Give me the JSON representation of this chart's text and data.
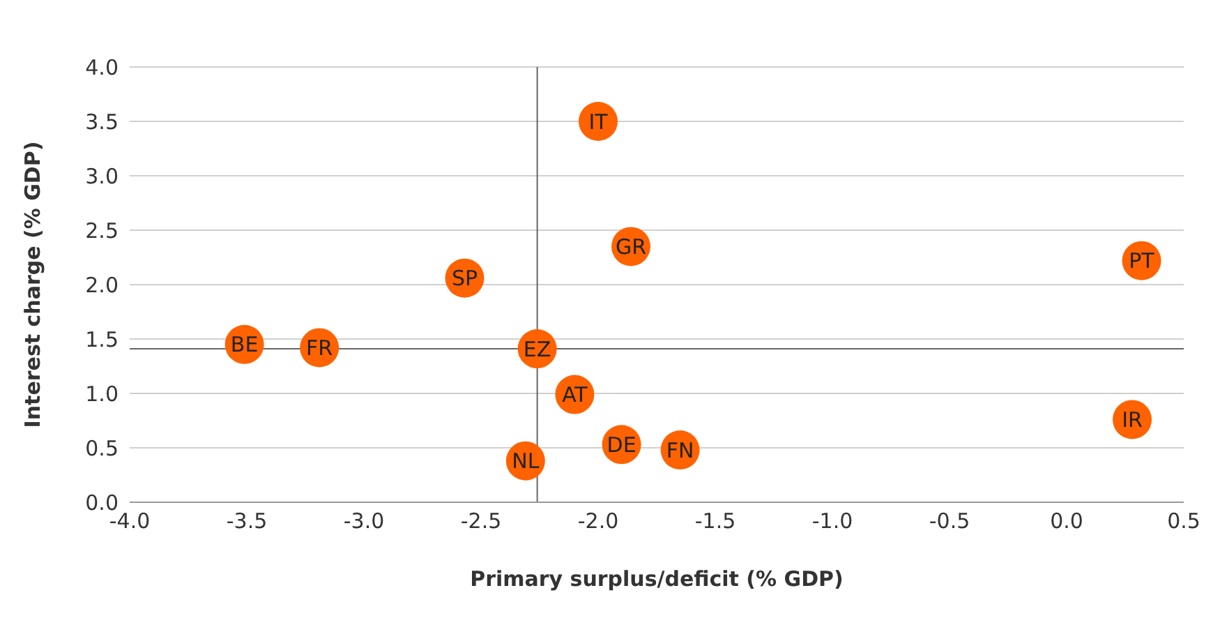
{
  "chart_data": {
    "type": "scatter",
    "xlabel": "Primary surplus/deficit (% GDP)",
    "ylabel": "Interest charge (% GDP)",
    "x": [
      -2.0,
      -1.86,
      0.32,
      -2.57,
      -3.51,
      -3.19,
      -2.26,
      -2.1,
      0.28,
      -1.9,
      -1.65,
      -2.31
    ],
    "series": [
      {
        "color": "#ff6200",
        "values": [
          3.5,
          2.35,
          2.22,
          2.06,
          1.45,
          1.42,
          1.41,
          0.99,
          0.76,
          0.53,
          0.48,
          0.38
        ]
      }
    ],
    "annotations": [
      {
        "text": "IT",
        "x": -2.0,
        "y": 3.5
      },
      {
        "text": "GR",
        "x": -1.86,
        "y": 2.35
      },
      {
        "text": "PT",
        "x": 0.32,
        "y": 2.22
      },
      {
        "text": "SP",
        "x": -2.57,
        "y": 2.06
      },
      {
        "text": "BE",
        "x": -3.51,
        "y": 1.45
      },
      {
        "text": "FR",
        "x": -3.19,
        "y": 1.42
      },
      {
        "text": "EZ",
        "x": -2.26,
        "y": 1.41
      },
      {
        "text": "AT",
        "x": -2.1,
        "y": 0.99
      },
      {
        "text": "IR",
        "x": 0.28,
        "y": 0.76
      },
      {
        "text": "DE",
        "x": -1.9,
        "y": 0.53
      },
      {
        "text": "FN",
        "x": -1.65,
        "y": 0.48
      },
      {
        "text": "NL",
        "x": -2.31,
        "y": 0.38
      }
    ],
    "ref_lines": [
      {
        "axis": "x",
        "value": -2.26,
        "color": "#666666"
      },
      {
        "axis": "y",
        "value": 1.41,
        "color": "#666666"
      }
    ],
    "xlim": [
      -4.0,
      0.5
    ],
    "xticks": [
      {
        "value": -4,
        "label": "-4.0"
      },
      {
        "value": -3.5,
        "label": "-3.5"
      },
      {
        "value": -3,
        "label": "-3.0"
      },
      {
        "value": -2.5,
        "label": "-2.5"
      },
      {
        "value": -2,
        "label": "-2.0"
      },
      {
        "value": -1.5,
        "label": "-1.5"
      },
      {
        "value": -1,
        "label": "-1.0"
      },
      {
        "value": -0.5,
        "label": "-0.5"
      },
      {
        "value": 0,
        "label": "0.0"
      },
      {
        "value": 0.5,
        "label": "0.5"
      }
    ],
    "ylim": [
      0,
      4.0
    ],
    "yticks": [
      {
        "value": 0,
        "label": "0.0"
      },
      {
        "value": 0.5,
        "label": "0.5"
      },
      {
        "value": 1,
        "label": "1.0"
      },
      {
        "value": 1.5,
        "label": "1.5"
      },
      {
        "value": 2,
        "label": "2.0"
      },
      {
        "value": 2.5,
        "label": "2.5"
      },
      {
        "value": 3,
        "label": "3.0"
      },
      {
        "value": 3.5,
        "label": "3.5"
      },
      {
        "value": 4,
        "label": "4.0"
      }
    ],
    "grid": "y",
    "marker": "circle"
  }
}
